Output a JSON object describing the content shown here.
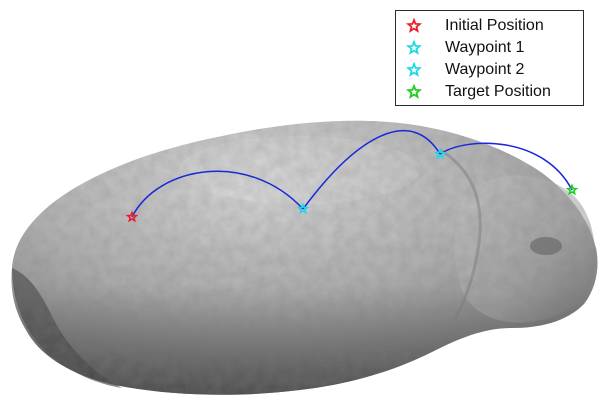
{
  "legend": {
    "items": [
      {
        "label": "Initial Position",
        "color": "#e8202a",
        "marker": "star"
      },
      {
        "label": "Waypoint 1",
        "color": "#1fd9e6",
        "marker": "star"
      },
      {
        "label": "Waypoint 2",
        "color": "#1fd9e6",
        "marker": "star"
      },
      {
        "label": "Target Position",
        "color": "#22cc22",
        "marker": "star"
      }
    ]
  },
  "trajectory": {
    "color": "#1a28d8",
    "segments": 3
  },
  "body": {
    "shape": "asteroid",
    "color": "#b9b9b9"
  }
}
